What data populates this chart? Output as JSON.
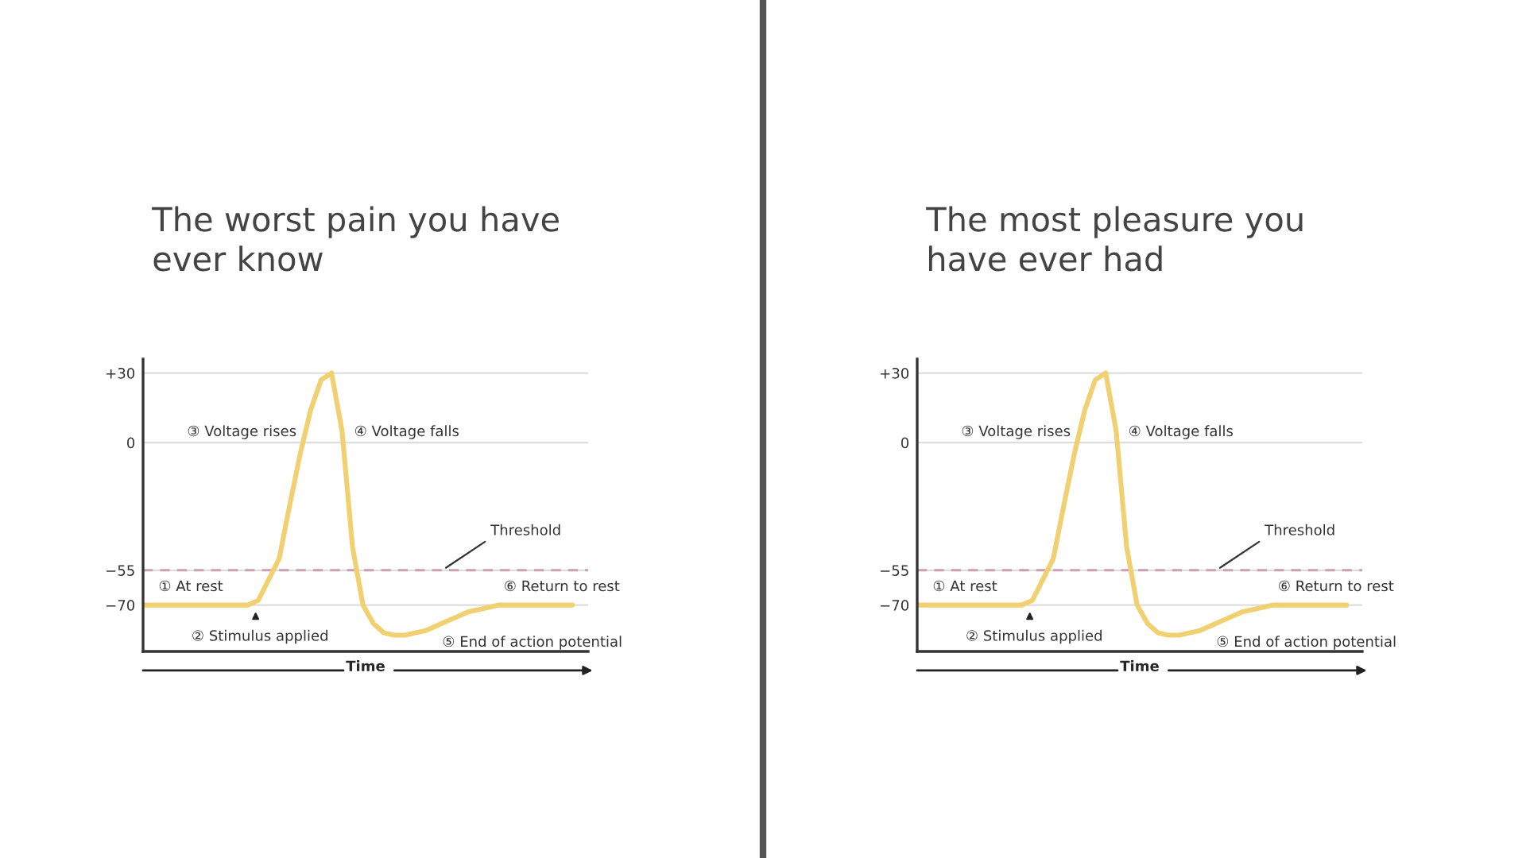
{
  "chart_data": [
    {
      "type": "line",
      "title": "The worst pain you have ever know",
      "xlabel": "Time",
      "categories": [
        null,
        null,
        null,
        null,
        null,
        null,
        null,
        null,
        null,
        null,
        null,
        null,
        null,
        null,
        null,
        null,
        null,
        null,
        null,
        null,
        null,
        null,
        null,
        null,
        null,
        null,
        null,
        null,
        null,
        null,
        null,
        null,
        null,
        null,
        null,
        null,
        null,
        null,
        null,
        null,
        null,
        null
      ],
      "series": [
        {
          "color": "#f0d070",
          "values": [
            -70,
            -70,
            -70,
            -70,
            -70,
            -70,
            -70,
            -70,
            -70,
            -70,
            -70,
            -68,
            -59,
            -50,
            -27,
            -5,
            14,
            27,
            30,
            5,
            -45,
            -70,
            -78,
            -82,
            -83,
            -83,
            -82,
            -81,
            -79,
            -77,
            -75,
            -73,
            -72,
            -71,
            -70,
            -70,
            -70,
            -70,
            -70,
            -70,
            -70,
            -70
          ]
        }
      ],
      "ylim": [
        -90,
        36
      ],
      "yticks": [
        {
          "value": 30,
          "label": "+30"
        },
        0,
        {
          "value": -55,
          "label": "−55"
        },
        {
          "value": -70,
          "label": "−70"
        }
      ],
      "grid": "y",
      "tick_labels": "y",
      "ref_lines": [
        {
          "axis": "y",
          "value": -55,
          "label": "Threshold",
          "color": "#c9a0b4",
          "line_style": "dashed"
        }
      ],
      "annotations": [
        "① At rest",
        "② Stimulus applied",
        "③ Voltage rises",
        "④ Voltage falls",
        "⑤ End of action potential",
        "⑥ Return to rest"
      ]
    },
    {
      "type": "line",
      "title": "The most pleasure you have ever had",
      "xlabel": "Time",
      "categories": [
        null,
        null,
        null,
        null,
        null,
        null,
        null,
        null,
        null,
        null,
        null,
        null,
        null,
        null,
        null,
        null,
        null,
        null,
        null,
        null,
        null,
        null,
        null,
        null,
        null,
        null,
        null,
        null,
        null,
        null,
        null,
        null,
        null,
        null,
        null,
        null,
        null,
        null,
        null,
        null,
        null,
        null
      ],
      "series": [
        {
          "color": "#f0d070",
          "values": [
            -70,
            -70,
            -70,
            -70,
            -70,
            -70,
            -70,
            -70,
            -70,
            -70,
            -70,
            -68,
            -59,
            -50,
            -27,
            -5,
            14,
            27,
            30,
            5,
            -45,
            -70,
            -78,
            -82,
            -83,
            -83,
            -82,
            -81,
            -79,
            -77,
            -75,
            -73,
            -72,
            -71,
            -70,
            -70,
            -70,
            -70,
            -70,
            -70,
            -70,
            -70
          ]
        }
      ],
      "ylim": [
        -90,
        36
      ],
      "yticks": [
        {
          "value": 30,
          "label": "+30"
        },
        0,
        {
          "value": -55,
          "label": "−55"
        },
        {
          "value": -70,
          "label": "−70"
        }
      ],
      "grid": "y",
      "tick_labels": "y",
      "ref_lines": [
        {
          "axis": "y",
          "value": -55,
          "label": "Threshold",
          "color": "#c9a0b4",
          "line_style": "dashed"
        }
      ],
      "annotations": [
        "① At rest",
        "② Stimulus applied",
        "③ Voltage rises",
        "④ Voltage falls",
        "⑤ End of action potential",
        "⑥ Return to rest"
      ]
    }
  ]
}
